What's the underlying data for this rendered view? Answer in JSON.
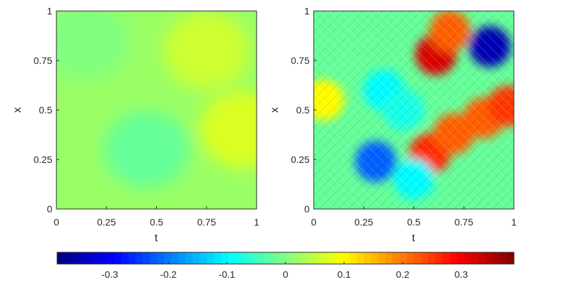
{
  "chart_data": [
    {
      "type": "heatmap",
      "title": "",
      "xlabel": "t",
      "ylabel": "x",
      "xlim": [
        0,
        1
      ],
      "ylim": [
        0,
        1
      ],
      "xticks": [
        "0",
        "0.25",
        "0.5",
        "0.75",
        "1"
      ],
      "yticks": [
        "0",
        "0.25",
        "0.5",
        "0.75",
        "1"
      ],
      "grid": false,
      "description_values_range": [
        -0.02,
        0.08
      ],
      "features": [
        {
          "t": 0.75,
          "x": 0.8,
          "value": 0.06
        },
        {
          "t": 0.93,
          "x": 0.4,
          "value": 0.07
        },
        {
          "t": 0.45,
          "x": 0.3,
          "value": -0.02
        },
        {
          "t": 0.15,
          "x": 0.85,
          "value": 0.0
        }
      ]
    },
    {
      "type": "heatmap",
      "title": "",
      "xlabel": "t",
      "ylabel": "x",
      "xlim": [
        0,
        1
      ],
      "ylim": [
        0,
        1
      ],
      "xticks": [
        "0",
        "0.25",
        "0.5",
        "0.75",
        "1"
      ],
      "yticks": [
        "0",
        "0.25",
        "0.5",
        "0.75",
        "1"
      ],
      "grid": false,
      "features": [
        {
          "t": 0.61,
          "x": 0.78,
          "value": 0.32
        },
        {
          "t": 0.68,
          "x": 0.9,
          "value": 0.22
        },
        {
          "t": 0.88,
          "x": 0.82,
          "value": -0.35
        },
        {
          "t": 0.58,
          "x": 0.28,
          "value": 0.26
        },
        {
          "t": 0.7,
          "x": 0.38,
          "value": 0.22
        },
        {
          "t": 0.85,
          "x": 0.46,
          "value": 0.22
        },
        {
          "t": 0.97,
          "x": 0.52,
          "value": 0.25
        },
        {
          "t": 0.31,
          "x": 0.24,
          "value": -0.22
        },
        {
          "t": 0.05,
          "x": 0.55,
          "value": 0.1
        },
        {
          "t": 0.35,
          "x": 0.6,
          "value": -0.1
        },
        {
          "t": 0.45,
          "x": 0.5,
          "value": -0.08
        },
        {
          "t": 0.5,
          "x": 0.15,
          "value": -0.1
        }
      ]
    }
  ],
  "colorbar": {
    "colormap": "jet",
    "range": [
      -0.39,
      0.39
    ],
    "ticks": [
      {
        "value": -0.3,
        "label": "-0.3"
      },
      {
        "value": -0.2,
        "label": "-0.2"
      },
      {
        "value": -0.1,
        "label": "-0.1"
      },
      {
        "value": 0,
        "label": "0"
      },
      {
        "value": 0.1,
        "label": "0.1"
      },
      {
        "value": 0.2,
        "label": "0.2"
      },
      {
        "value": 0.3,
        "label": "0.3"
      }
    ]
  }
}
